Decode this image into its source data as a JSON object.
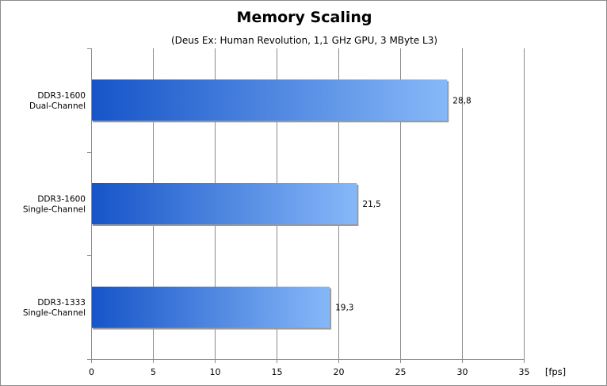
{
  "chart_data": {
    "type": "bar",
    "orientation": "horizontal",
    "title": "Memory Scaling",
    "subtitle": "(Deus Ex: Human Revolution, 1,1 GHz GPU, 3 MByte L3)",
    "categories": [
      [
        "DDR3-1600",
        "Dual-Channel"
      ],
      [
        "DDR3-1600",
        "Single-Channel"
      ],
      [
        "DDR3-1333",
        "Single-Channel"
      ]
    ],
    "values": [
      28.8,
      21.5,
      19.3
    ],
    "value_labels": [
      "28,8",
      "21,5",
      "19,3"
    ],
    "xlim": [
      0,
      35
    ],
    "xticks": [
      0,
      5,
      10,
      15,
      20,
      25,
      30,
      35
    ],
    "xunit": "[fps]",
    "grid": "vertical",
    "colors": {
      "bar_gradient_start": "#1654c8",
      "bar_gradient_end": "#86b8f8",
      "grid": "#8c8c8c"
    }
  }
}
